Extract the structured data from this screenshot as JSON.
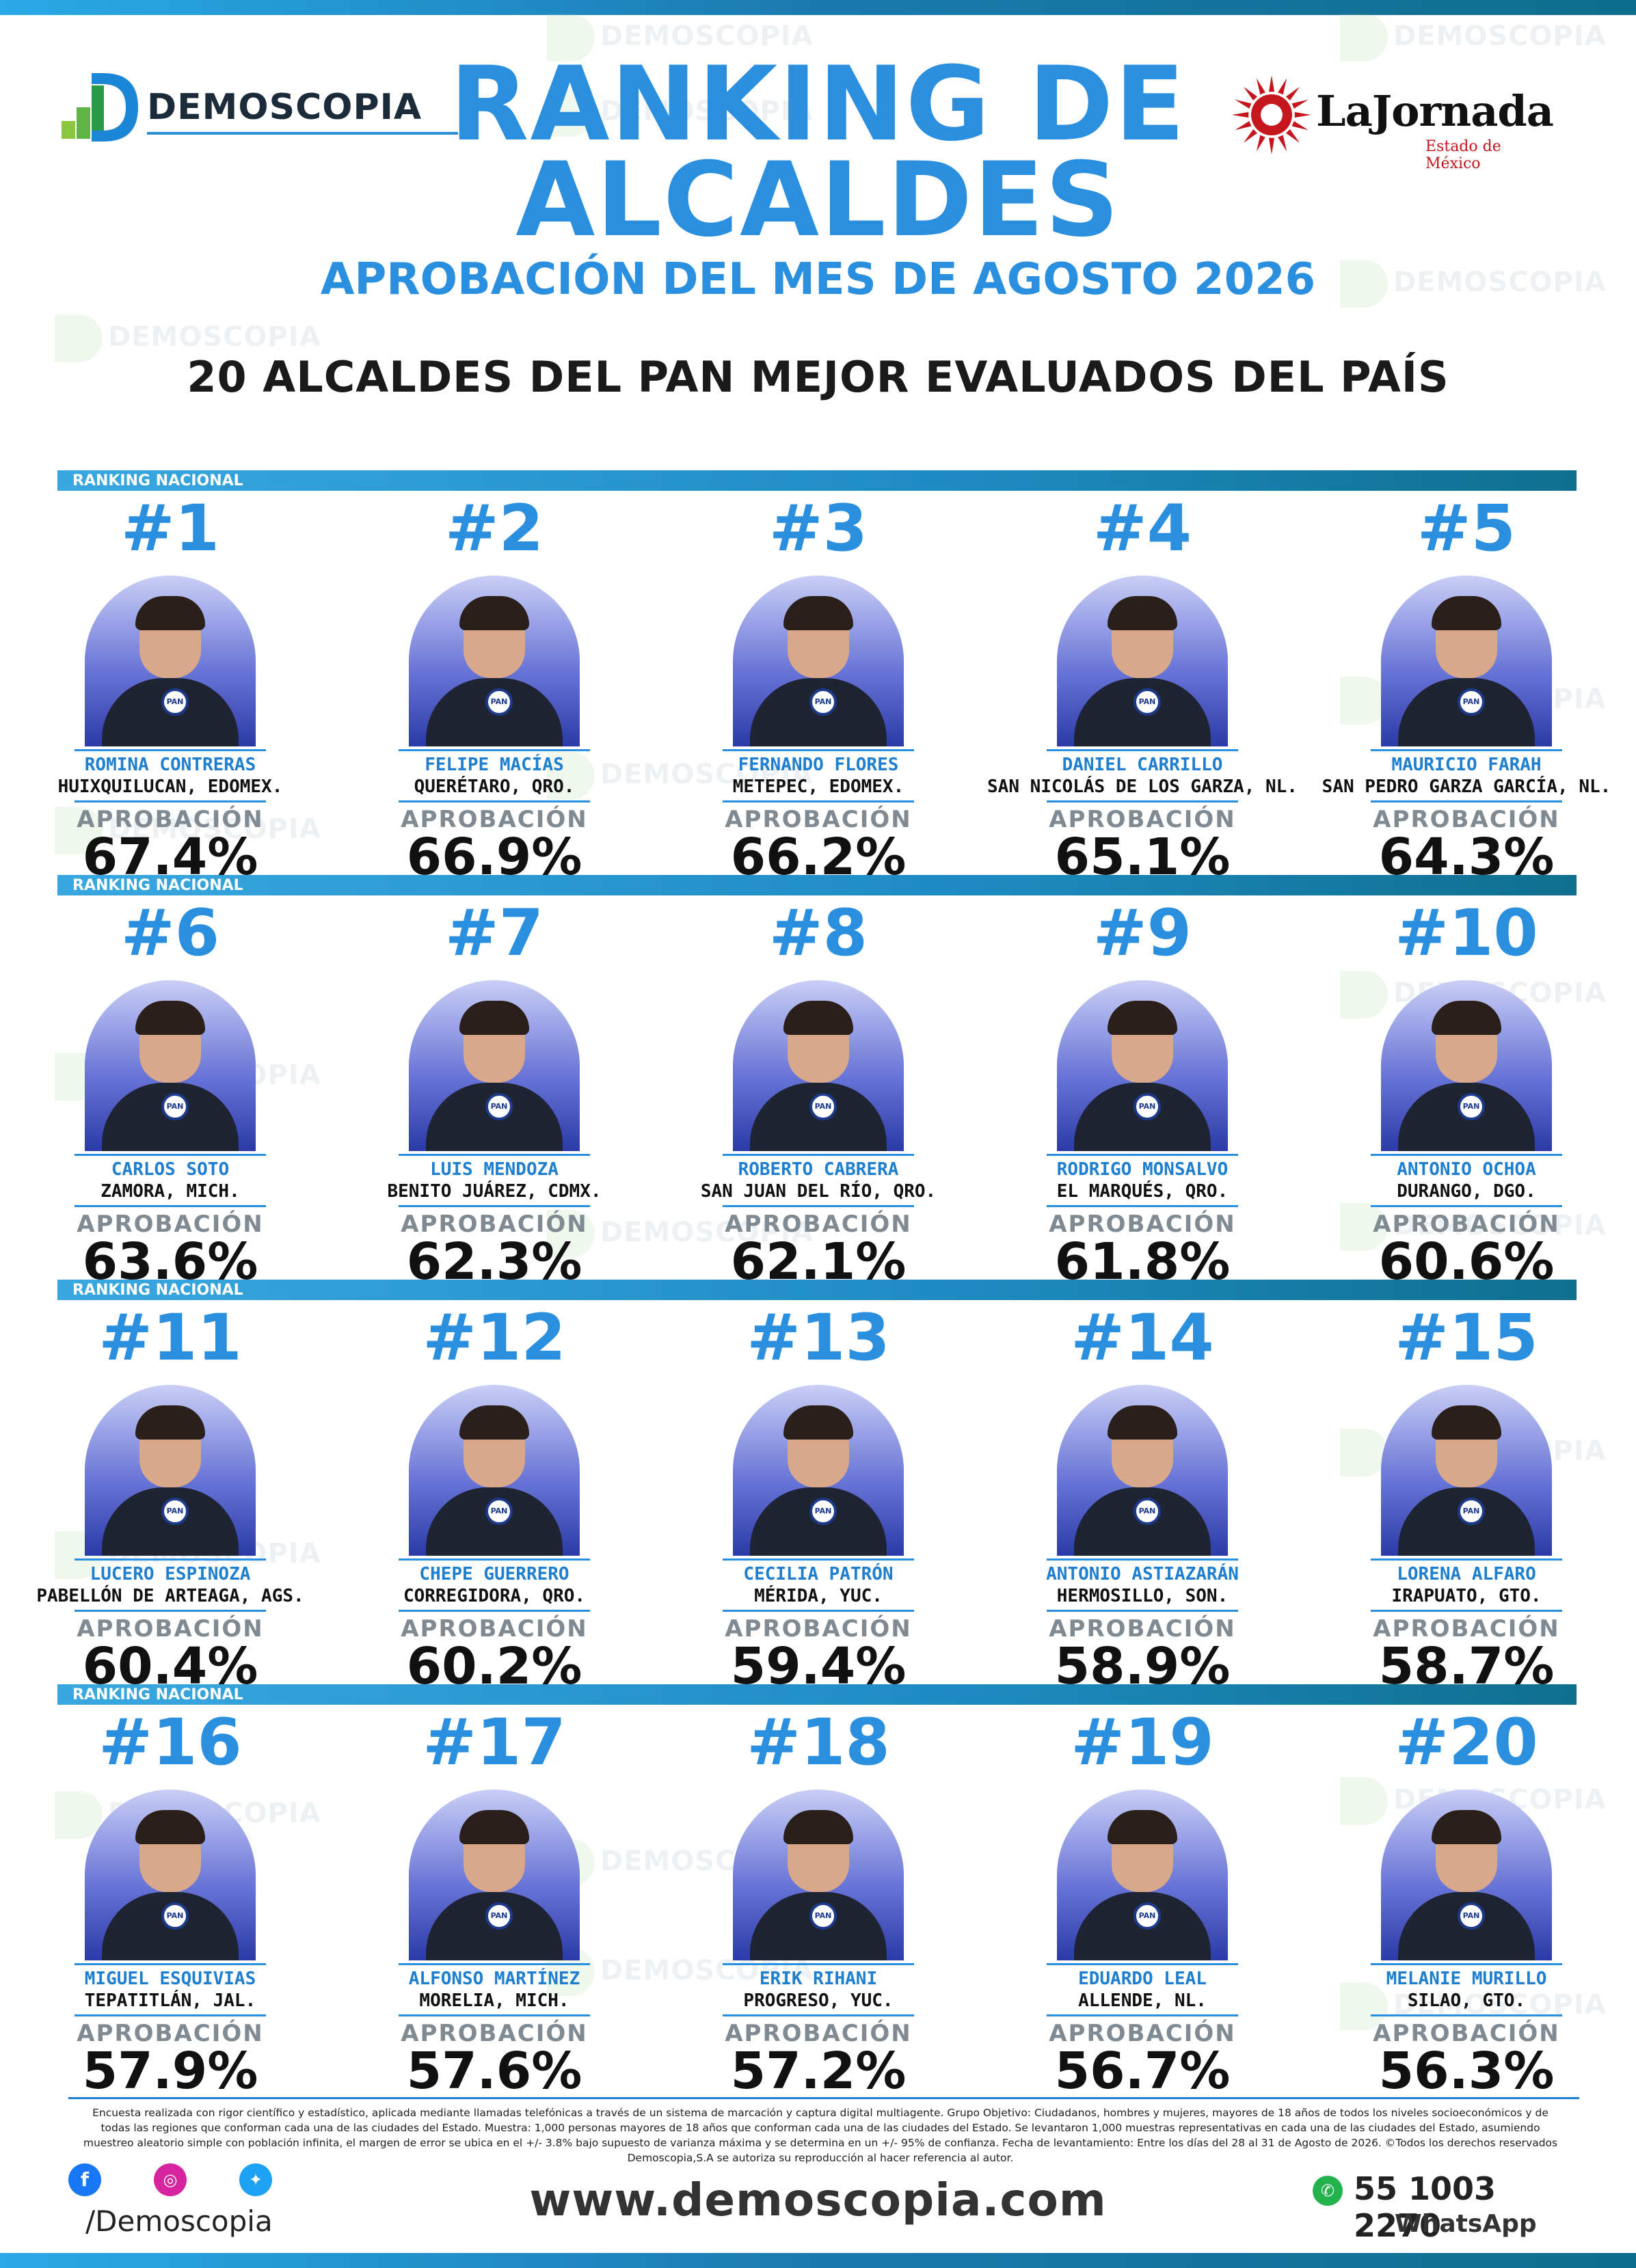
{
  "header": {
    "demoscopia_logo": "DEMOSCOPIA",
    "jornada_logo": "LaJornada",
    "jornada_sub": "Estado de México",
    "title_line1": "RANKING DE",
    "title_line2": "ALCALDES",
    "subtitle": "APROBACIÓN DEL MES DE AGOSTO 2026",
    "heading": "20 ALCALDES DEL PAN MEJOR EVALUADOS DEL PAÍS",
    "watermark": "DEMOSCOPIA"
  },
  "section_label": "RANKING NACIONAL",
  "approval_label": "APROBACIÓN",
  "badge_text": "PAN",
  "colors": {
    "accent": "#2b8fe0",
    "dark": "#111111",
    "gray": "#7f8a92"
  },
  "alcaldes": [
    {
      "rank": "#1",
      "name": "ROMINA CONTRERAS",
      "city": "HUIXQUILUCAN, EDOMEX.",
      "approval": "67.4%"
    },
    {
      "rank": "#2",
      "name": "FELIPE MACÍAS",
      "city": "QUERÉTARO, QRO.",
      "approval": "66.9%"
    },
    {
      "rank": "#3",
      "name": "FERNANDO FLORES",
      "city": "METEPEC, EDOMEX.",
      "approval": "66.2%"
    },
    {
      "rank": "#4",
      "name": "DANIEL CARRILLO",
      "city": "SAN NICOLÁS DE LOS GARZA, NL.",
      "approval": "65.1%"
    },
    {
      "rank": "#5",
      "name": "MAURICIO FARAH",
      "city": "SAN PEDRO GARZA GARCÍA, NL.",
      "approval": "64.3%"
    },
    {
      "rank": "#6",
      "name": "CARLOS SOTO",
      "city": "ZAMORA, MICH.",
      "approval": "63.6%"
    },
    {
      "rank": "#7",
      "name": "LUIS MENDOZA",
      "city": "BENITO JUÁREZ, CDMX.",
      "approval": "62.3%"
    },
    {
      "rank": "#8",
      "name": "ROBERTO CABRERA",
      "city": "SAN JUAN DEL RÍO, QRO.",
      "approval": "62.1%"
    },
    {
      "rank": "#9",
      "name": "RODRIGO MONSALVO",
      "city": "EL MARQUÉS, QRO.",
      "approval": "61.8%"
    },
    {
      "rank": "#10",
      "name": "ANTONIO OCHOA",
      "city": "DURANGO, DGO.",
      "approval": "60.6%"
    },
    {
      "rank": "#11",
      "name": "LUCERO ESPINOZA",
      "city": "PABELLÓN DE ARTEAGA, AGS.",
      "approval": "60.4%"
    },
    {
      "rank": "#12",
      "name": "CHEPE GUERRERO",
      "city": "CORREGIDORA, QRO.",
      "approval": "60.2%"
    },
    {
      "rank": "#13",
      "name": "CECILIA PATRÓN",
      "city": "MÉRIDA, YUC.",
      "approval": "59.4%"
    },
    {
      "rank": "#14",
      "name": "ANTONIO ASTIAZARÁN",
      "city": "HERMOSILLO, SON.",
      "approval": "58.9%"
    },
    {
      "rank": "#15",
      "name": "LORENA ALFARO",
      "city": "IRAPUATO, GTO.",
      "approval": "58.7%"
    },
    {
      "rank": "#16",
      "name": "MIGUEL ESQUIVIAS",
      "city": "TEPATITLÁN, JAL.",
      "approval": "57.9%"
    },
    {
      "rank": "#17",
      "name": "ALFONSO MARTÍNEZ",
      "city": "MORELIA, MICH.",
      "approval": "57.6%"
    },
    {
      "rank": "#18",
      "name": "ERIK RIHANI",
      "city": "PROGRESO, YUC.",
      "approval": "57.2%"
    },
    {
      "rank": "#19",
      "name": "EDUARDO LEAL",
      "city": "ALLENDE, NL.",
      "approval": "56.7%"
    },
    {
      "rank": "#20",
      "name": "MELANIE MURILLO",
      "city": "SILAO, GTO.",
      "approval": "56.3%"
    }
  ],
  "footer": {
    "disclaimer": "Encuesta realizada con rigor científico y estadístico, aplicada mediante llamadas telefónicas a través de un sistema de marcación y captura digital multiagente. Grupo Objetivo: Ciudadanos, hombres y mujeres, mayores de 18 años de todos los niveles socioeconómicos y de todas las regiones que conforman cada una de las ciudades del Estado. Muestra: 1,000 personas mayores de 18 años que conforman cada una de las ciudades del Estado. Se levantaron 1,000 muestras representativas en cada una de las ciudades del Estado, asumiendo muestreo aleatorio simple con población infinita, el margen de error se ubica en el +/- 3.8% bajo supuesto de varianza máxima y se determina en un +/- 95% de confianza. Fecha de levantamiento: Entre los días del 28 al 31 de Agosto de 2026. ©Todos los derechos reservados Demoscopia,S.A se autoriza su reproducción al hacer referencia al autor.",
    "social_handle": "/Demoscopia",
    "website": "www.demoscopia.com",
    "phone": "55 1003 2270",
    "phone_label": "WhatsApp",
    "social_icons": [
      "facebook-icon",
      "instagram-icon",
      "twitter-icon"
    ]
  }
}
